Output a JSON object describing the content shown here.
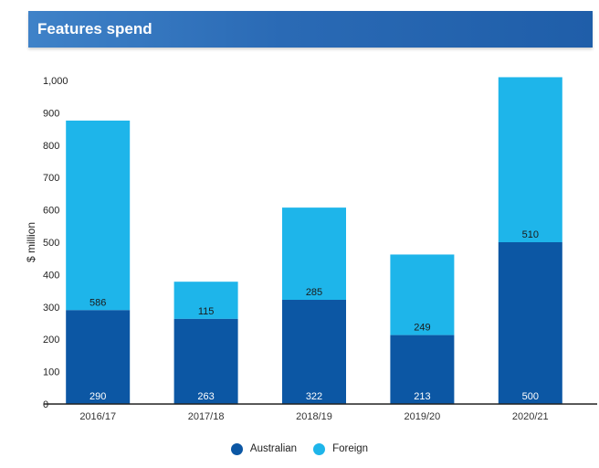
{
  "header": {
    "title": "Features spend"
  },
  "colors": {
    "australian": "#0c57a4",
    "foreign": "#1eb5ea",
    "title_bar": "#2a6ab5"
  },
  "chart_data": {
    "type": "bar",
    "stacked": true,
    "categories": [
      "2016/17",
      "2017/18",
      "2018/19",
      "2019/20",
      "2020/21"
    ],
    "series": [
      {
        "name": "Australian",
        "values": [
          290,
          263,
          322,
          213,
          500
        ]
      },
      {
        "name": "Foreign",
        "values": [
          586,
          115,
          285,
          249,
          510
        ]
      }
    ],
    "ylabel": "$ million",
    "ylim": [
      0,
      1000
    ],
    "yticks": [
      "0",
      "100",
      "200",
      "300",
      "400",
      "500",
      "600",
      "700",
      "800",
      "900",
      "1,000"
    ],
    "grid": false,
    "legend_position": "bottom"
  }
}
